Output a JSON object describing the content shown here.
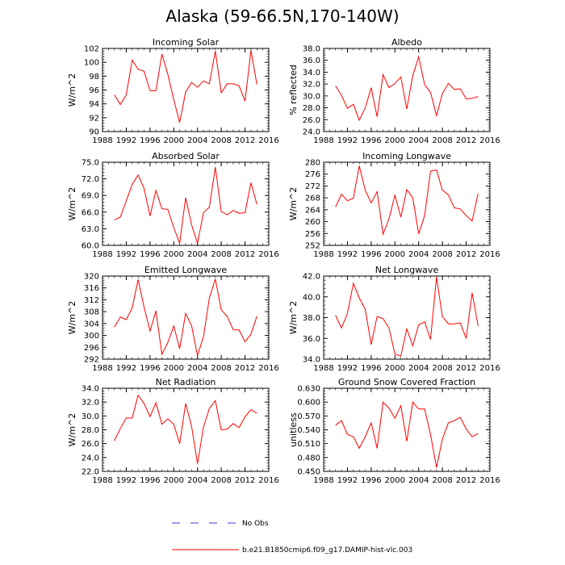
{
  "title": "Alaska (59-66.5N,170-140W)",
  "colors": {
    "model_line": "#ff0000",
    "obs_line": "#3b3bd1",
    "axis": "#000000"
  },
  "legend": {
    "obs_label": "No Obs",
    "model_label": "b.e21.B1850cmip6.f09_g17.DAMIP-hist-vlc.003"
  },
  "chart_data": [
    {
      "type": "line",
      "title": "Incoming Solar",
      "ylabel": "W/m^2",
      "xlabel": "",
      "xlim": [
        1988,
        2016
      ],
      "ylim": [
        90,
        102
      ],
      "xticks": [
        "1988",
        "1992",
        "1996",
        "2000",
        "2004",
        "2008",
        "2012",
        "2016"
      ],
      "yticks": [
        "90",
        "92",
        "94",
        "96",
        "98",
        "100",
        "102"
      ],
      "x": [
        1990,
        1991,
        1992,
        1993,
        1994,
        1995,
        1996,
        1997,
        1998,
        1999,
        2000,
        2001,
        2002,
        2003,
        2004,
        2005,
        2006,
        2007,
        2008,
        2009,
        2010,
        2011,
        2012,
        2013,
        2014
      ],
      "series": [
        {
          "name": "b.e21.B1850cmip6.f09_g17.DAMIP-hist-vlc.003",
          "values": [
            95.3,
            93.9,
            95.3,
            100.3,
            99.0,
            98.7,
            95.9,
            95.9,
            101.2,
            98.3,
            94.6,
            91.3,
            95.7,
            97.1,
            96.4,
            97.3,
            96.9,
            101.6,
            95.6,
            96.9,
            96.9,
            96.6,
            94.4,
            101.7,
            96.8
          ]
        }
      ]
    },
    {
      "type": "line",
      "title": "Albedo",
      "ylabel": "% reflected",
      "xlabel": "",
      "xlim": [
        1988,
        2016
      ],
      "ylim": [
        24,
        38
      ],
      "xticks": [
        "1988",
        "1992",
        "1996",
        "2000",
        "2004",
        "2008",
        "2012",
        "2016"
      ],
      "yticks": [
        "24.0",
        "26.0",
        "28.0",
        "30.0",
        "32.0",
        "34.0",
        "36.0",
        "38.0"
      ],
      "x": [
        1990,
        1991,
        1992,
        1993,
        1994,
        1995,
        1996,
        1997,
        1998,
        1999,
        2000,
        2001,
        2002,
        2003,
        2004,
        2005,
        2006,
        2007,
        2008,
        2009,
        2010,
        2011,
        2012,
        2013,
        2014
      ],
      "series": [
        {
          "name": "b.e21.B1850cmip6.f09_g17.DAMIP-hist-vlc.003",
          "values": [
            31.7,
            30.1,
            27.9,
            28.6,
            25.9,
            28.0,
            31.4,
            26.5,
            33.6,
            31.4,
            32.1,
            33.2,
            27.8,
            33.4,
            36.6,
            31.9,
            30.6,
            26.7,
            30.4,
            32.1,
            31.1,
            31.2,
            29.5,
            29.6,
            29.9
          ]
        }
      ]
    },
    {
      "type": "line",
      "title": "Absorbed Solar",
      "ylabel": "W/m^2",
      "xlabel": "",
      "xlim": [
        1988,
        2016
      ],
      "ylim": [
        60,
        75
      ],
      "xticks": [
        "1988",
        "1992",
        "1996",
        "2000",
        "2004",
        "2008",
        "2012",
        "2016"
      ],
      "yticks": [
        "60.0",
        "63.0",
        "66.0",
        "69.0",
        "72.0",
        "75.0"
      ],
      "x": [
        1990,
        1991,
        1992,
        1993,
        1994,
        1995,
        1996,
        1997,
        1998,
        1999,
        2000,
        2001,
        2002,
        2003,
        2004,
        2005,
        2006,
        2007,
        2008,
        2009,
        2010,
        2011,
        2012,
        2013,
        2014
      ],
      "series": [
        {
          "name": "b.e21.B1850cmip6.f09_g17.DAMIP-hist-vlc.003",
          "values": [
            64.6,
            65.1,
            68.0,
            71.0,
            72.7,
            70.3,
            65.3,
            69.9,
            66.6,
            66.5,
            63.2,
            60.4,
            68.6,
            63.7,
            60.4,
            65.9,
            66.9,
            74.1,
            66.1,
            65.5,
            66.3,
            65.8,
            65.9,
            71.3,
            67.4
          ]
        }
      ]
    },
    {
      "type": "line",
      "title": "Incoming Longwave",
      "ylabel": "W/m^2",
      "xlabel": "",
      "xlim": [
        1988,
        2016
      ],
      "ylim": [
        252,
        280
      ],
      "xticks": [
        "1988",
        "1992",
        "1996",
        "2000",
        "2004",
        "2008",
        "2012",
        "2016"
      ],
      "yticks": [
        "252",
        "256",
        "260",
        "264",
        "268",
        "272",
        "276",
        "280"
      ],
      "x": [
        1990,
        1991,
        1992,
        1993,
        1994,
        1995,
        1996,
        1997,
        1998,
        1999,
        2000,
        2001,
        2002,
        2003,
        2004,
        2005,
        2006,
        2007,
        2008,
        2009,
        2010,
        2011,
        2012,
        2013,
        2014
      ],
      "series": [
        {
          "name": "b.e21.B1850cmip6.f09_g17.DAMIP-hist-vlc.003",
          "values": [
            264.9,
            269.2,
            267.0,
            267.9,
            278.8,
            270.6,
            266.3,
            270.1,
            255.8,
            260.9,
            268.9,
            261.5,
            270.8,
            268.0,
            255.9,
            262.0,
            277.0,
            277.4,
            270.6,
            269.0,
            264.6,
            264.3,
            262.0,
            260.2,
            269.4
          ]
        }
      ]
    },
    {
      "type": "line",
      "title": "Emitted Longwave",
      "ylabel": "W/m^2",
      "xlabel": "",
      "xlim": [
        1988,
        2016
      ],
      "ylim": [
        292,
        320
      ],
      "xticks": [
        "1988",
        "1992",
        "1996",
        "2000",
        "2004",
        "2008",
        "2012",
        "2016"
      ],
      "yticks": [
        "292",
        "296",
        "300",
        "304",
        "308",
        "312",
        "316",
        "320"
      ],
      "x": [
        1990,
        1991,
        1992,
        1993,
        1994,
        1995,
        1996,
        1997,
        1998,
        1999,
        2000,
        2001,
        2002,
        2003,
        2004,
        2005,
        2006,
        2007,
        2008,
        2009,
        2010,
        2011,
        2012,
        2013,
        2014
      ],
      "series": [
        {
          "name": "b.e21.B1850cmip6.f09_g17.DAMIP-hist-vlc.003",
          "values": [
            302.8,
            306.2,
            305.3,
            309.3,
            318.8,
            309.5,
            301.5,
            308.3,
            293.6,
            297.6,
            303.2,
            295.5,
            307.4,
            303.3,
            293.2,
            299.6,
            312.6,
            319.0,
            308.6,
            306.4,
            302.0,
            301.8,
            297.9,
            300.4,
            306.5
          ]
        }
      ]
    },
    {
      "type": "line",
      "title": "Net Longwave",
      "ylabel": "W/m^2",
      "xlabel": "",
      "xlim": [
        1988,
        2016
      ],
      "ylim": [
        34,
        42
      ],
      "xticks": [
        "1988",
        "1992",
        "1996",
        "2000",
        "2004",
        "2008",
        "2012",
        "2016"
      ],
      "yticks": [
        "34.0",
        "36.0",
        "38.0",
        "40.0",
        "42.0"
      ],
      "x": [
        1990,
        1991,
        1992,
        1993,
        1994,
        1995,
        1996,
        1997,
        1998,
        1999,
        2000,
        2001,
        2002,
        2003,
        2004,
        2005,
        2006,
        2007,
        2008,
        2009,
        2010,
        2011,
        2012,
        2013,
        2014
      ],
      "series": [
        {
          "name": "b.e21.B1850cmip6.f09_g17.DAMIP-hist-vlc.003",
          "values": [
            38.2,
            37.0,
            38.4,
            41.3,
            39.9,
            38.8,
            35.4,
            38.1,
            37.9,
            37.0,
            34.5,
            34.3,
            36.9,
            35.3,
            37.3,
            37.6,
            35.9,
            41.9,
            38.1,
            37.4,
            37.4,
            37.5,
            36.0,
            40.4,
            37.2
          ]
        }
      ]
    },
    {
      "type": "line",
      "title": "Net Radiation",
      "ylabel": "W/m^2",
      "xlabel": "",
      "xlim": [
        1988,
        2016
      ],
      "ylim": [
        22,
        34
      ],
      "xticks": [
        "1988",
        "1992",
        "1996",
        "2000",
        "2004",
        "2008",
        "2012",
        "2016"
      ],
      "yticks": [
        "22.0",
        "24.0",
        "26.0",
        "28.0",
        "30.0",
        "32.0",
        "34.0"
      ],
      "x": [
        1990,
        1991,
        1992,
        1993,
        1994,
        1995,
        1996,
        1997,
        1998,
        1999,
        2000,
        2001,
        2002,
        2003,
        2004,
        2005,
        2006,
        2007,
        2008,
        2009,
        2010,
        2011,
        2012,
        2013,
        2014
      ],
      "series": [
        {
          "name": "b.e21.B1850cmip6.f09_g17.DAMIP-hist-vlc.003",
          "values": [
            26.4,
            28.2,
            29.7,
            29.7,
            33.0,
            31.8,
            29.9,
            31.9,
            28.8,
            29.6,
            28.8,
            26.0,
            31.8,
            28.5,
            23.1,
            28.4,
            31.1,
            32.2,
            28.0,
            28.1,
            28.9,
            28.3,
            29.9,
            30.9,
            30.4
          ]
        }
      ]
    },
    {
      "type": "line",
      "title": "Ground Snow Covered Fraction",
      "ylabel": "unitless",
      "xlabel": "",
      "xlim": [
        1988,
        2016
      ],
      "ylim": [
        0.45,
        0.63
      ],
      "xticks": [
        "1988",
        "1992",
        "1996",
        "2000",
        "2004",
        "2008",
        "2012",
        "2016"
      ],
      "yticks": [
        "0.450",
        "0.480",
        "0.510",
        "0.540",
        "0.570",
        "0.600",
        "0.630"
      ],
      "x": [
        1990,
        1991,
        1992,
        1993,
        1994,
        1995,
        1996,
        1997,
        1998,
        1999,
        2000,
        2001,
        2002,
        2003,
        2004,
        2005,
        2006,
        2007,
        2008,
        2009,
        2010,
        2011,
        2012,
        2013,
        2014
      ],
      "series": [
        {
          "name": "b.e21.B1850cmip6.f09_g17.DAMIP-hist-vlc.003",
          "values": [
            0.55,
            0.56,
            0.53,
            0.525,
            0.5,
            0.525,
            0.555,
            0.5,
            0.6,
            0.587,
            0.565,
            0.592,
            0.515,
            0.6,
            0.585,
            0.585,
            0.53,
            0.458,
            0.52,
            0.555,
            0.56,
            0.567,
            0.542,
            0.525,
            0.532
          ]
        }
      ]
    }
  ]
}
